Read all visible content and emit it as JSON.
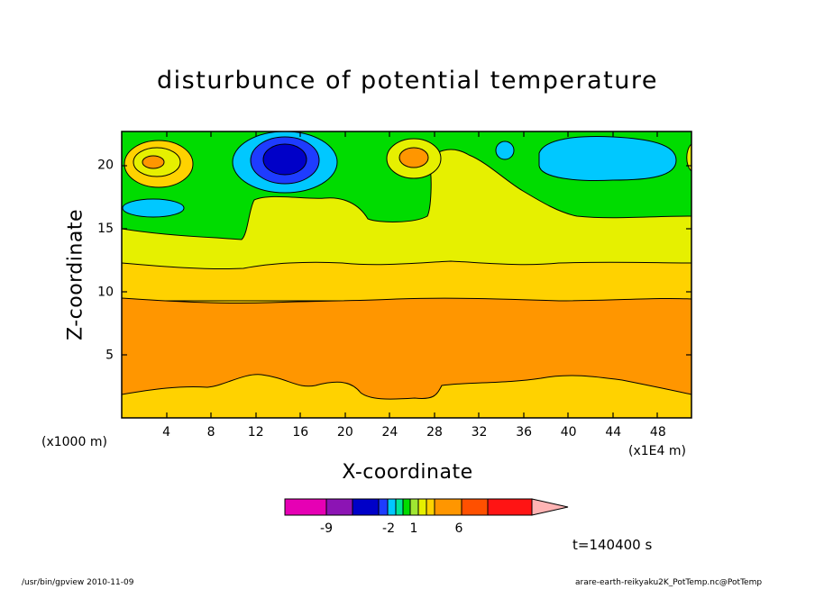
{
  "chart_data": {
    "type": "heatmap",
    "title": "disturbunce of potential temperature",
    "xlabel": "X-coordinate",
    "ylabel": "Z-coordinate",
    "x_unit": "(x1E4 m)",
    "y_unit": "(x1000 m)",
    "xlim": [
      0,
      51
    ],
    "ylim": [
      0,
      22.6
    ],
    "x_ticks": [
      4,
      8,
      12,
      16,
      20,
      24,
      28,
      32,
      36,
      40,
      44,
      48
    ],
    "y_ticks": [
      5,
      10,
      15,
      20
    ],
    "colorbar": {
      "labels": [
        "-9",
        "-2",
        "1",
        "6"
      ],
      "colors": [
        "#e600b4",
        "#8c14b4",
        "#0000c8",
        "#1e3cff",
        "#00c8ff",
        "#00e696",
        "#00dc00",
        "#a0e632",
        "#e6f000",
        "#ffd200",
        "#ff9600",
        "#ff5000",
        "#ff1414",
        "#ff7878",
        "#ffb4b4"
      ]
    },
    "timestamp": "t=140400 s"
  },
  "footer": {
    "left": "/usr/bin/gpview  2010-11-09",
    "right": "arare-earth-reikyaku2K_PotTemp.nc@PotTemp"
  }
}
